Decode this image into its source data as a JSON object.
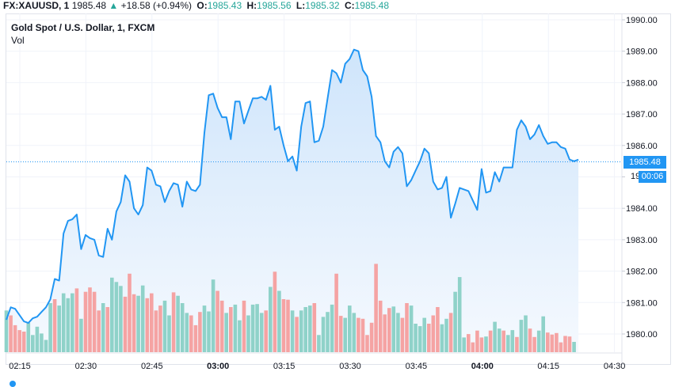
{
  "header": {
    "symbol": "FX:XAUUSD, 1",
    "last": "1985.48",
    "direction_icon": "triangle-up-icon",
    "change": "+18.58 (+0.94%)",
    "open_label": "O:",
    "open": "1985.43",
    "high_label": "H:",
    "high": "1985.56",
    "low_label": "L:",
    "low": "1985.32",
    "close_label": "C:",
    "close": "1985.48"
  },
  "legend": {
    "title": "Gold Spot / U.S. Dollar, 1, FXCM",
    "volume_label": "Vol"
  },
  "price_tag": "1985.48",
  "countdown_tag": "00:06",
  "yaxis_partial": "19",
  "colors": {
    "line": "#2196f3",
    "area_top": "#cfe5fb",
    "area_bottom": "#f3f8fe",
    "vol_up": "#8fd2c9",
    "vol_down": "#f5a3a3",
    "grid": "#f0f3fa",
    "accent": "#2196f3",
    "up_text": "#26a69a"
  },
  "chart_data": {
    "type": "area",
    "title": "Gold Spot / U.S. Dollar, 1, FXCM",
    "symbol": "FX:XAUUSD",
    "xlabel": "",
    "ylabel": "",
    "ylim": [
      1979.5,
      1990.3
    ],
    "yticks": [
      "1980.00",
      "1981.00",
      "1982.00",
      "1983.00",
      "1984.00",
      "1985.00",
      "1986.00",
      "1987.00",
      "1988.00",
      "1989.00",
      "1990.00"
    ],
    "xticks": [
      "02:15",
      "02:30",
      "02:45",
      "03:00",
      "03:15",
      "03:30",
      "03:45",
      "04:00",
      "04:15",
      "04:30"
    ],
    "grid": true,
    "last_price": 1985.48,
    "price_series": [
      1980.45,
      1980.85,
      1980.8,
      1980.6,
      1980.4,
      1980.35,
      1980.5,
      1980.55,
      1980.7,
      1980.85,
      1981.1,
      1981.75,
      1981.7,
      1983.2,
      1983.6,
      1983.65,
      1983.8,
      1982.7,
      1983.15,
      1983.05,
      1983.0,
      1982.5,
      1982.45,
      1983.35,
      1983.0,
      1983.9,
      1984.2,
      1985.05,
      1984.85,
      1984.0,
      1983.8,
      1984.1,
      1985.3,
      1985.2,
      1984.75,
      1984.7,
      1984.2,
      1984.55,
      1984.8,
      1984.75,
      1984.05,
      1984.85,
      1984.6,
      1984.55,
      1984.75,
      1986.4,
      1987.6,
      1987.65,
      1987.2,
      1986.9,
      1986.9,
      1986.2,
      1987.4,
      1987.4,
      1986.7,
      1987.1,
      1987.5,
      1987.5,
      1987.55,
      1987.45,
      1987.9,
      1986.5,
      1986.6,
      1986.0,
      1985.5,
      1985.65,
      1985.2,
      1986.6,
      1987.35,
      1987.4,
      1986.1,
      1986.15,
      1986.6,
      1987.5,
      1988.4,
      1988.3,
      1988.0,
      1988.6,
      1988.75,
      1989.05,
      1989.0,
      1988.4,
      1988.2,
      1987.55,
      1986.3,
      1986.1,
      1985.5,
      1985.3,
      1985.8,
      1985.95,
      1985.75,
      1984.7,
      1984.9,
      1985.2,
      1985.5,
      1985.9,
      1985.75,
      1984.85,
      1984.6,
      1984.65,
      1985.0,
      1983.7,
      1984.15,
      1984.65,
      1984.6,
      1984.55,
      1984.25,
      1983.95,
      1985.25,
      1984.5,
      1984.55,
      1985.15,
      1984.85,
      1985.3,
      1985.3,
      1985.3,
      1986.5,
      1986.8,
      1986.6,
      1986.2,
      1986.35,
      1986.65,
      1986.3,
      1986.05,
      1986.1,
      1986.1,
      1985.95,
      1985.9,
      1985.55,
      1985.5,
      1985.55
    ],
    "volume_series": [
      {
        "v": 0.85,
        "c": "up"
      },
      {
        "v": 0.75,
        "c": "down"
      },
      {
        "v": 0.55,
        "c": "down"
      },
      {
        "v": 0.45,
        "c": "down"
      },
      {
        "v": 0.42,
        "c": "down"
      },
      {
        "v": 0.6,
        "c": "up"
      },
      {
        "v": 0.35,
        "c": "up"
      },
      {
        "v": 0.52,
        "c": "up"
      },
      {
        "v": 0.38,
        "c": "up"
      },
      {
        "v": 0.25,
        "c": "up"
      },
      {
        "v": 1.0,
        "c": "up"
      },
      {
        "v": 1.08,
        "c": "down"
      },
      {
        "v": 0.95,
        "c": "up"
      },
      {
        "v": 1.2,
        "c": "up"
      },
      {
        "v": 1.1,
        "c": "up"
      },
      {
        "v": 1.2,
        "c": "up"
      },
      {
        "v": 1.3,
        "c": "down"
      },
      {
        "v": 0.68,
        "c": "up"
      },
      {
        "v": 1.23,
        "c": "down"
      },
      {
        "v": 1.32,
        "c": "down"
      },
      {
        "v": 1.23,
        "c": "down"
      },
      {
        "v": 0.85,
        "c": "down"
      },
      {
        "v": 1.0,
        "c": "up"
      },
      {
        "v": 0.92,
        "c": "down"
      },
      {
        "v": 1.52,
        "c": "up"
      },
      {
        "v": 1.43,
        "c": "up"
      },
      {
        "v": 1.35,
        "c": "up"
      },
      {
        "v": 1.13,
        "c": "down"
      },
      {
        "v": 1.6,
        "c": "down"
      },
      {
        "v": 1.18,
        "c": "down"
      },
      {
        "v": 1.15,
        "c": "up"
      },
      {
        "v": 1.36,
        "c": "up"
      },
      {
        "v": 1.1,
        "c": "down"
      },
      {
        "v": 1.2,
        "c": "down"
      },
      {
        "v": 0.85,
        "c": "down"
      },
      {
        "v": 0.95,
        "c": "down"
      },
      {
        "v": 1.05,
        "c": "up"
      },
      {
        "v": 0.75,
        "c": "up"
      },
      {
        "v": 1.22,
        "c": "down"
      },
      {
        "v": 1.15,
        "c": "up"
      },
      {
        "v": 1.0,
        "c": "up"
      },
      {
        "v": 0.8,
        "c": "up"
      },
      {
        "v": 0.75,
        "c": "down"
      },
      {
        "v": 0.55,
        "c": "down"
      },
      {
        "v": 0.82,
        "c": "down"
      },
      {
        "v": 0.95,
        "c": "up"
      },
      {
        "v": 0.83,
        "c": "up"
      },
      {
        "v": 1.48,
        "c": "up"
      },
      {
        "v": 1.25,
        "c": "down"
      },
      {
        "v": 1.05,
        "c": "down"
      },
      {
        "v": 0.8,
        "c": "up"
      },
      {
        "v": 0.92,
        "c": "down"
      },
      {
        "v": 0.97,
        "c": "up"
      },
      {
        "v": 0.65,
        "c": "up"
      },
      {
        "v": 1.05,
        "c": "down"
      },
      {
        "v": 0.75,
        "c": "up"
      },
      {
        "v": 0.97,
        "c": "up"
      },
      {
        "v": 0.98,
        "c": "up"
      },
      {
        "v": 0.8,
        "c": "up"
      },
      {
        "v": 0.85,
        "c": "down"
      },
      {
        "v": 1.33,
        "c": "up"
      },
      {
        "v": 1.64,
        "c": "down"
      },
      {
        "v": 1.25,
        "c": "up"
      },
      {
        "v": 1.08,
        "c": "down"
      },
      {
        "v": 1.07,
        "c": "down"
      },
      {
        "v": 0.85,
        "c": "up"
      },
      {
        "v": 0.72,
        "c": "down"
      },
      {
        "v": 0.85,
        "c": "up"
      },
      {
        "v": 0.92,
        "c": "up"
      },
      {
        "v": 0.95,
        "c": "up"
      },
      {
        "v": 1.0,
        "c": "down"
      },
      {
        "v": 0.35,
        "c": "up"
      },
      {
        "v": 0.72,
        "c": "up"
      },
      {
        "v": 0.82,
        "c": "up"
      },
      {
        "v": 0.97,
        "c": "up"
      },
      {
        "v": 1.6,
        "c": "down"
      },
      {
        "v": 0.74,
        "c": "down"
      },
      {
        "v": 0.7,
        "c": "up"
      },
      {
        "v": 0.95,
        "c": "up"
      },
      {
        "v": 0.8,
        "c": "up"
      },
      {
        "v": 0.7,
        "c": "down"
      },
      {
        "v": 0.68,
        "c": "down"
      },
      {
        "v": 0.35,
        "c": "down"
      },
      {
        "v": 0.6,
        "c": "down"
      },
      {
        "v": 1.8,
        "c": "down"
      },
      {
        "v": 1.05,
        "c": "down"
      },
      {
        "v": 0.77,
        "c": "down"
      },
      {
        "v": 0.9,
        "c": "down"
      },
      {
        "v": 0.93,
        "c": "up"
      },
      {
        "v": 0.8,
        "c": "up"
      },
      {
        "v": 0.7,
        "c": "down"
      },
      {
        "v": 1.0,
        "c": "down"
      },
      {
        "v": 0.95,
        "c": "up"
      },
      {
        "v": 0.58,
        "c": "up"
      },
      {
        "v": 0.53,
        "c": "up"
      },
      {
        "v": 0.7,
        "c": "up"
      },
      {
        "v": 0.58,
        "c": "down"
      },
      {
        "v": 0.75,
        "c": "down"
      },
      {
        "v": 0.92,
        "c": "down"
      },
      {
        "v": 0.57,
        "c": "up"
      },
      {
        "v": 0.68,
        "c": "up"
      },
      {
        "v": 0.8,
        "c": "down"
      },
      {
        "v": 1.23,
        "c": "up"
      },
      {
        "v": 1.53,
        "c": "up"
      },
      {
        "v": 0.3,
        "c": "up"
      },
      {
        "v": 0.37,
        "c": "down"
      },
      {
        "v": 0.2,
        "c": "down"
      },
      {
        "v": 0.44,
        "c": "down"
      },
      {
        "v": 0.3,
        "c": "down"
      },
      {
        "v": 0.32,
        "c": "up"
      },
      {
        "v": 0.44,
        "c": "down"
      },
      {
        "v": 0.62,
        "c": "up"
      },
      {
        "v": 0.48,
        "c": "up"
      },
      {
        "v": 0.44,
        "c": "down"
      },
      {
        "v": 0.35,
        "c": "up"
      },
      {
        "v": 0.45,
        "c": "up"
      },
      {
        "v": 0.31,
        "c": "down"
      },
      {
        "v": 0.66,
        "c": "up"
      },
      {
        "v": 0.75,
        "c": "up"
      },
      {
        "v": 0.48,
        "c": "down"
      },
      {
        "v": 0.31,
        "c": "down"
      },
      {
        "v": 0.44,
        "c": "up"
      },
      {
        "v": 0.73,
        "c": "up"
      },
      {
        "v": 0.4,
        "c": "down"
      },
      {
        "v": 0.36,
        "c": "down"
      },
      {
        "v": 0.39,
        "c": "down"
      },
      {
        "v": 0.2,
        "c": "down"
      },
      {
        "v": 0.33,
        "c": "down"
      },
      {
        "v": 0.32,
        "c": "down"
      },
      {
        "v": 0.21,
        "c": "up"
      }
    ],
    "legend": []
  }
}
